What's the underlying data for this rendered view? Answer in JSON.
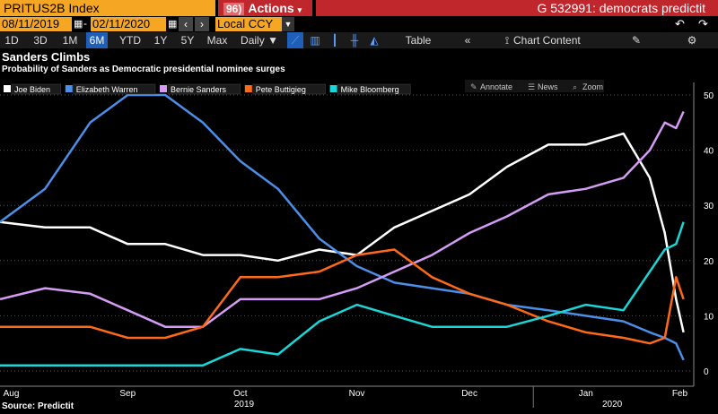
{
  "toolbar": {
    "ticker": "PRITUS2B Index",
    "actions_num": "96)",
    "actions_label": "Actions",
    "title": "G 532991: democrats predictit",
    "start_date": "08/11/2019",
    "end_date": "02/11/2020",
    "currency": "Local CCY",
    "periods": [
      "1D",
      "3D",
      "1M",
      "6M",
      "YTD",
      "1Y",
      "5Y",
      "Max"
    ],
    "active_period": "6M",
    "frequency": "Daily",
    "table_label": "Table",
    "chart_content_label": "Chart Content"
  },
  "chart_tools": {
    "annotate": "Annotate",
    "news": "News",
    "zoom": "Zoom"
  },
  "colors": {
    "ticker_bg": "#f5a623",
    "title_bar": "#c0272d",
    "active_tab": "#1f5fb7"
  },
  "chart_data": {
    "type": "line",
    "title": "Sanders Climbs",
    "subtitle": "Probability of Sanders as Democratic presidential nominee surges",
    "source": "Source: Predictit",
    "ylim": [
      0,
      50
    ],
    "yticks": [
      0,
      10,
      20,
      30,
      40,
      50
    ],
    "x_labels": [
      "Aug",
      "Sep",
      "Oct",
      "Nov",
      "Dec",
      "Jan",
      "Feb"
    ],
    "x_label_dates": [
      "2019-08-15",
      "2019-09-15",
      "2019-10-15",
      "2019-11-15",
      "2019-12-15",
      "2020-01-15",
      "2020-02-09"
    ],
    "year_labels": [
      "2019",
      "2020"
    ],
    "year_label_dates": [
      "2019-10-16",
      "2020-01-22"
    ],
    "year_dividers": [
      "2019-08-01",
      "2020-01-01"
    ],
    "xlim": [
      "2019-08-12",
      "2020-02-12"
    ],
    "legend_position": "top-left",
    "grid": "horizontal dotted",
    "x": [
      "2019-08-12",
      "2019-08-24",
      "2019-09-05",
      "2019-09-15",
      "2019-09-25",
      "2019-10-05",
      "2019-10-15",
      "2019-10-25",
      "2019-11-05",
      "2019-11-15",
      "2019-11-25",
      "2019-12-05",
      "2019-12-15",
      "2019-12-25",
      "2020-01-05",
      "2020-01-15",
      "2020-01-25",
      "2020-02-01",
      "2020-02-05",
      "2020-02-08",
      "2020-02-10"
    ],
    "series": [
      {
        "name": "Joe Biden",
        "color": "#ffffff",
        "values": [
          27,
          26,
          26,
          23,
          23,
          21,
          21,
          20,
          22,
          21,
          26,
          29,
          32,
          37,
          41,
          41,
          43,
          35,
          25,
          13,
          7
        ]
      },
      {
        "name": "Elizabeth Warren",
        "color": "#4c8fe8",
        "values": [
          27,
          33,
          45,
          50,
          50,
          45,
          38,
          33,
          24,
          19,
          16,
          15,
          14,
          12,
          11,
          10,
          9,
          7,
          6,
          5,
          2
        ]
      },
      {
        "name": "Bernie Sanders",
        "color": "#d59cf5",
        "values": [
          13,
          15,
          14,
          11,
          8,
          8,
          13,
          13,
          13,
          15,
          18,
          21,
          25,
          28,
          32,
          33,
          35,
          40,
          45,
          44,
          47
        ]
      },
      {
        "name": "Pete Buttigieg",
        "color": "#ff6a1a",
        "values": [
          8,
          8,
          8,
          6,
          6,
          8,
          17,
          17,
          18,
          21,
          22,
          17,
          14,
          12,
          9,
          7,
          6,
          5,
          6,
          17,
          13
        ]
      },
      {
        "name": "Mike Bloomberg",
        "color": "#1ad6d6",
        "values": [
          1,
          1,
          1,
          1,
          1,
          1,
          4,
          3,
          9,
          12,
          10,
          8,
          8,
          8,
          10,
          12,
          11,
          18,
          22,
          23,
          27
        ]
      }
    ]
  }
}
